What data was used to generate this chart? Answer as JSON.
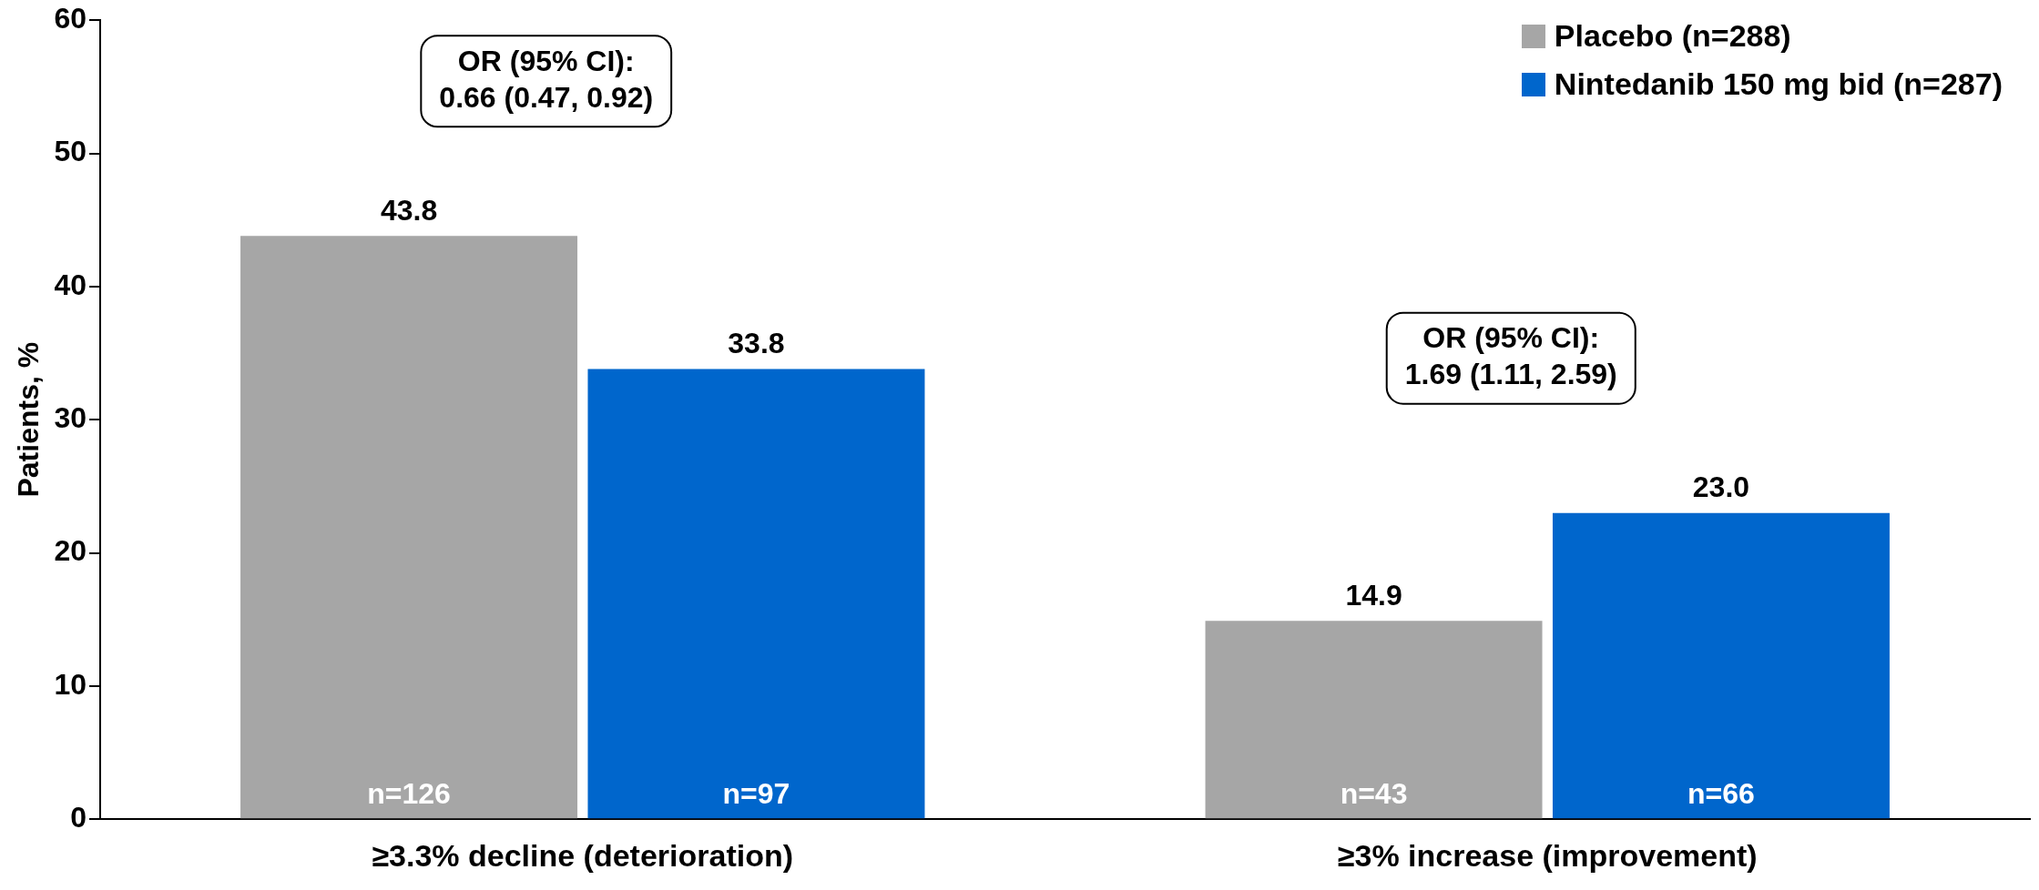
{
  "chart_data": {
    "type": "bar",
    "ylabel": "Patients, %",
    "categories": [
      "≥3.3% decline (deterioration)",
      "≥3% increase (improvement)"
    ],
    "series": [
      {
        "name": "Placebo (n=288)",
        "color": "#a6a6a6",
        "values": [
          43.8,
          14.9
        ],
        "value_labels": [
          "43.8",
          "14.9"
        ]
      },
      {
        "name": "Nintedanib 150 mg bid (n=287)",
        "color": "#0066cc",
        "values": [
          33.8,
          23.0
        ],
        "value_labels": [
          "33.8",
          "23.0"
        ]
      }
    ],
    "ylim": [
      0,
      60
    ],
    "yticks": [
      0,
      10,
      20,
      30,
      40,
      50,
      60
    ],
    "grid": false,
    "legend": "top right",
    "annotations": [
      "OR (95% CI):\n0.66 (0.47, 0.92)",
      "OR (95% CI):\n1.69 (1.11, 2.59)",
      "n=126",
      "n=97",
      "n=43",
      "n=66"
    ]
  }
}
